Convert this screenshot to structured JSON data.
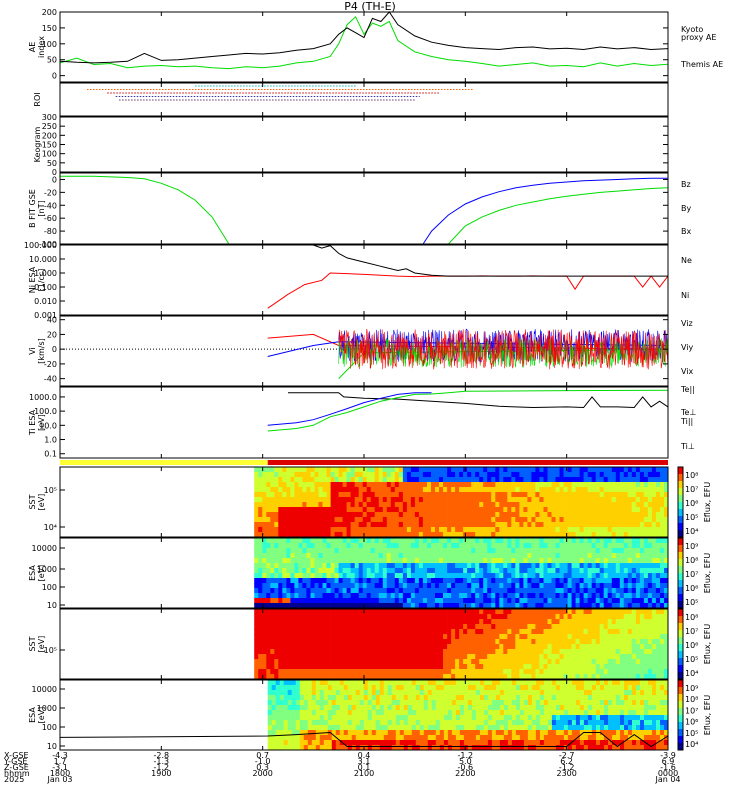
{
  "title": "P4 (TH-E)",
  "colors": {
    "black": "#000000",
    "red": "#ff0000",
    "green": "#00dd00",
    "blue": "#0000ff",
    "yellow": "#ffff33"
  },
  "chart_data": [
    {
      "type": "line",
      "ylabel": "AE index",
      "ylim": [
        -20,
        200
      ],
      "yticks": [
        "200",
        "150",
        "100",
        "50",
        "0"
      ],
      "series": [
        {
          "name": "Kyoto proxy AE",
          "color": "#00dd00",
          "x": [
            1800,
            1810,
            1820,
            1830,
            1840,
            1850,
            1900,
            1910,
            1920,
            1930,
            1940,
            1950,
            2000,
            2010,
            2020,
            2030,
            2040,
            2045,
            2050,
            2055,
            2100,
            2105,
            2110,
            2115,
            2120,
            2130,
            2140,
            2150,
            2200,
            2210,
            2220,
            2230,
            2240,
            2250,
            2300,
            2310,
            2320,
            2330,
            2340,
            2350,
            2400
          ],
          "y": [
            40,
            55,
            35,
            38,
            25,
            30,
            32,
            28,
            30,
            25,
            22,
            28,
            25,
            30,
            40,
            45,
            60,
            100,
            160,
            185,
            130,
            165,
            155,
            170,
            110,
            75,
            60,
            50,
            45,
            38,
            30,
            35,
            40,
            30,
            32,
            28,
            40,
            30,
            38,
            32,
            36
          ]
        },
        {
          "name": "Themis AE",
          "color": "#000000",
          "x": [
            1800,
            1810,
            1820,
            1830,
            1840,
            1850,
            1900,
            1910,
            1920,
            1930,
            1940,
            1950,
            2000,
            2010,
            2020,
            2030,
            2040,
            2045,
            2050,
            2055,
            2100,
            2105,
            2110,
            2115,
            2120,
            2130,
            2140,
            2150,
            2200,
            2210,
            2220,
            2230,
            2240,
            2250,
            2300,
            2310,
            2320,
            2330,
            2340,
            2350,
            2400
          ],
          "y": [
            45,
            42,
            40,
            42,
            45,
            70,
            48,
            50,
            55,
            60,
            65,
            70,
            68,
            72,
            80,
            85,
            100,
            130,
            150,
            135,
            120,
            180,
            170,
            200,
            160,
            125,
            105,
            95,
            88,
            85,
            82,
            88,
            90,
            84,
            86,
            82,
            90,
            84,
            88,
            82,
            85
          ]
        }
      ]
    },
    {
      "type": "line",
      "ylabel": "ROI",
      "series": [
        {
          "name": "ROI flag 1",
          "color": "#00bbbb",
          "x": [
            1920,
            2055
          ]
        },
        {
          "name": "ROI flag 2",
          "color": "#ff6600",
          "x": [
            1816,
            2205
          ]
        },
        {
          "name": "ROI flag 3",
          "color": "#cc0000",
          "x": [
            1828,
            2145
          ]
        },
        {
          "name": "ROI flag 4",
          "color": "#333399",
          "x": [
            1833,
            2133
          ]
        },
        {
          "name": "ROI flag 5",
          "color": "#663366",
          "x": [
            1835,
            2130
          ]
        }
      ]
    },
    {
      "type": "line",
      "ylabel": "Keogram",
      "ylim": [
        0,
        300
      ],
      "yticks": [
        "300",
        "250",
        "200",
        "150",
        "100",
        "50",
        "0"
      ]
    },
    {
      "type": "line",
      "ylabel": "B FIT GSE [nT]",
      "ylim": [
        -100,
        10
      ],
      "yticks": [
        "0",
        "-20",
        "-40",
        "-60",
        "-80",
        "-100"
      ],
      "series": [
        {
          "name": "Bz",
          "color": "#ff0000",
          "x": [],
          "y": []
        },
        {
          "name": "By",
          "color": "#00dd00",
          "x": [
            1800,
            1820,
            1840,
            1850,
            1900,
            1910,
            1920,
            1930,
            1940,
            2150,
            2200,
            2210,
            2220,
            2230,
            2240,
            2250,
            2300,
            2310,
            2320,
            2330,
            2340,
            2350,
            2400
          ],
          "y": [
            5,
            5,
            3,
            1,
            -6,
            -16,
            -32,
            -58,
            -100,
            -100,
            -72,
            -58,
            -48,
            -40,
            -35,
            -30,
            -26,
            -23,
            -20,
            -18,
            -16,
            -14,
            -13
          ]
        },
        {
          "name": "Bx",
          "color": "#0000ff",
          "x": [
            2135,
            2140,
            2150,
            2200,
            2210,
            2220,
            2230,
            2240,
            2250,
            2300,
            2310,
            2320,
            2330,
            2340,
            2350,
            2400
          ],
          "y": [
            -100,
            -80,
            -55,
            -38,
            -27,
            -19,
            -13,
            -9,
            -6,
            -4,
            -2,
            -1,
            0,
            1,
            2,
            2
          ]
        }
      ]
    },
    {
      "type": "line",
      "ylabel": "Ni ESA [1/cc]",
      "yscale": "log",
      "ylim": [
        0.001,
        100
      ],
      "yticks": [
        "100.000",
        "10.000",
        "1.000",
        "0.100",
        "0.010",
        "0.001"
      ],
      "series": [
        {
          "name": "Ne",
          "color": "#ff0000",
          "x": [
            2003,
            2015,
            2025,
            2035,
            2040,
            2050,
            2100,
            2110,
            2120,
            2130,
            2140,
            2200,
            2210,
            2220,
            2230,
            2240,
            2250,
            2300,
            2305,
            2310,
            2320,
            2330,
            2340,
            2345,
            2350,
            2355,
            2400
          ],
          "y": [
            0.003,
            0.03,
            0.15,
            0.3,
            1.0,
            0.9,
            0.8,
            0.7,
            0.6,
            0.55,
            0.6,
            0.6,
            0.62,
            0.6,
            0.6,
            0.62,
            0.6,
            0.6,
            0.07,
            0.6,
            0.6,
            0.6,
            0.6,
            0.1,
            0.6,
            0.1,
            0.6
          ]
        },
        {
          "name": "Ni",
          "color": "#000000",
          "x": [
            2030,
            2035,
            2040,
            2045,
            2050,
            2100,
            2110,
            2120,
            2125,
            2130,
            2140,
            2150,
            2200,
            2210,
            2220,
            2230,
            2240,
            2250,
            2300,
            2310,
            2320,
            2330,
            2340,
            2350,
            2400
          ],
          "y": [
            100,
            60,
            90,
            25,
            12,
            6,
            3,
            1.5,
            2.0,
            1.0,
            0.7,
            0.6,
            0.6,
            0.6,
            0.6,
            0.6,
            0.6,
            0.6,
            0.6,
            0.6,
            0.6,
            0.6,
            0.6,
            0.6,
            0.6
          ]
        }
      ]
    },
    {
      "type": "line",
      "ylabel": "Vi [km/s]",
      "ylim": [
        -50,
        45
      ],
      "yticks": [
        "40",
        "20",
        "0",
        "-20",
        "-40"
      ],
      "reference_line": 0,
      "series": [
        {
          "name": "Viz",
          "color": "#ff0000",
          "x": [
            2003,
            2030,
            2045,
            2400
          ],
          "y": [
            15,
            20,
            5,
            0
          ]
        },
        {
          "name": "Viy",
          "color": "#00dd00",
          "x": [
            2045,
            2100,
            2400
          ],
          "y": [
            -40,
            -5,
            0
          ]
        },
        {
          "name": "Vix",
          "color": "#0000ff",
          "x": [
            2003,
            2030,
            2045,
            2400
          ],
          "y": [
            -10,
            5,
            10,
            5
          ]
        }
      ]
    },
    {
      "type": "line",
      "ylabel": "Ti ESA [eV]",
      "yscale": "log",
      "ylim": [
        0.05,
        5000
      ],
      "yticks": [
        "1000.0",
        "100.0",
        "10.0",
        "1.0",
        "0.1"
      ],
      "series": [
        {
          "name": "Te||",
          "color": "#000000",
          "x": [
            2015,
            2045,
            2048,
            2100,
            2120,
            2140,
            2200,
            2220,
            2240,
            2300,
            2310,
            2315,
            2320,
            2330,
            2340,
            2345,
            2350,
            2355,
            2400
          ],
          "y": [
            2000,
            2000,
            1000,
            800,
            700,
            500,
            350,
            220,
            180,
            200,
            180,
            1000,
            200,
            200,
            180,
            1000,
            200,
            500,
            200
          ]
        },
        {
          "name": "Te⊥",
          "color": "#ff0000",
          "x": [],
          "y": []
        },
        {
          "name": "Ti||",
          "color": "#00dd00",
          "x": [
            2003,
            2020,
            2030,
            2040,
            2050,
            2100,
            2110,
            2120,
            2130,
            2140,
            2150,
            2200,
            2300,
            2400
          ],
          "y": [
            4,
            6,
            10,
            40,
            80,
            200,
            500,
            900,
            1500,
            1600,
            2000,
            2500,
            2800,
            3000
          ]
        },
        {
          "name": "Ti⊥",
          "color": "#0000ff",
          "x": [
            2003,
            2020,
            2030,
            2040,
            2050,
            2100,
            2110,
            2120,
            2130,
            2140
          ],
          "y": [
            10,
            15,
            25,
            60,
            150,
            400,
            800,
            1500,
            2000,
            2000
          ]
        }
      ]
    },
    {
      "type": "heatmap",
      "ylabel": "SST [eV]",
      "yticks": [
        "10⁵",
        "10⁴"
      ],
      "colorbar": {
        "label": "Eflux, EFU",
        "ticks": [
          "10⁸",
          "10⁷",
          "10⁶",
          "10⁵",
          "10⁴"
        ]
      }
    },
    {
      "type": "heatmap",
      "ylabel": "ESA [eV]",
      "yticks": [
        "10000",
        "1000",
        "100",
        "10"
      ],
      "colorbar": {
        "label": "Eflux, EFU",
        "ticks": [
          "10⁹",
          "10⁸",
          "10⁷",
          "10⁶",
          "10⁵"
        ]
      }
    },
    {
      "type": "heatmap",
      "ylabel": "SST [eV]",
      "yticks": [
        "10⁵"
      ],
      "colorbar": {
        "label": "Eflux, EFU",
        "ticks": [
          "10⁸",
          "10⁷",
          "10⁶",
          "10⁵",
          "10⁴"
        ]
      }
    },
    {
      "type": "heatmap",
      "ylabel": "ESA [eV]",
      "yticks": [
        "10000",
        "1000",
        "100",
        "10"
      ],
      "colorbar": {
        "label": "Eflux, EFU",
        "ticks": [
          "10⁹",
          "10⁸",
          "10⁷",
          "10⁶",
          "10⁵",
          "10⁴"
        ]
      }
    }
  ],
  "xaxis": {
    "row_labels": [
      "X-GSE",
      "Y-GSE",
      "Z-GSE",
      "hhmm",
      "2025"
    ],
    "columns": [
      [
        "-4.3",
        "1.7",
        "-3.1",
        "1800",
        "Jan 03"
      ],
      [
        "-2.8",
        "-1.3",
        "-1.2",
        "1900",
        ""
      ],
      [
        "0.7",
        "-1.0",
        "0.3",
        "2000",
        ""
      ],
      [
        "0.4",
        "3.1",
        "0.1",
        "2100",
        ""
      ],
      [
        "-1.2",
        "5.0",
        "-0.6",
        "2200",
        ""
      ],
      [
        "-2.7",
        "6.2",
        "-1.2",
        "2300",
        ""
      ],
      [
        "-3.9",
        "6.9",
        "-1.6",
        "0000",
        "Jan 04"
      ]
    ]
  }
}
